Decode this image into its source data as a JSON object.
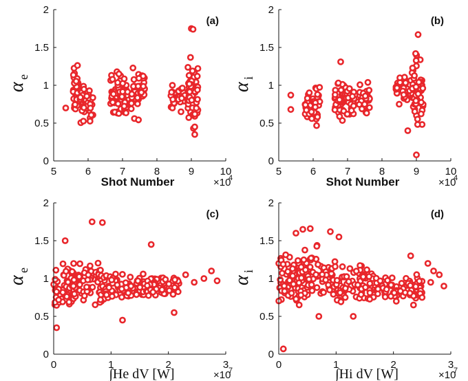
{
  "colors": {
    "marker": "#e8262b",
    "axis": "#111111"
  },
  "chart_data": [
    {
      "id": "a",
      "type": "scatter",
      "panel_label": "(a)",
      "xlabel": "Shot Number",
      "x_multiplier": "×10",
      "x_exponent": "4",
      "ylabel_symbol": "α",
      "ylabel_sub": "e",
      "xlim": [
        5,
        10
      ],
      "ylim": [
        0,
        2
      ],
      "xticks": [
        "5",
        "6",
        "7",
        "8",
        "9",
        "10"
      ],
      "yticks": [
        "0",
        "0.5",
        "1",
        "1.5",
        "2"
      ],
      "clusters": [
        {
          "x": [
            5.55,
            5.75
          ],
          "y": [
            0.45,
            1.38
          ]
        },
        {
          "x": [
            5.75,
            6.15
          ],
          "y": [
            0.42,
            1.1
          ]
        },
        {
          "x": [
            6.65,
            6.95
          ],
          "y": [
            0.5,
            1.3
          ]
        },
        {
          "x": [
            6.95,
            7.15
          ],
          "y": [
            0.5,
            1.15
          ]
        },
        {
          "x": [
            7.25,
            7.65
          ],
          "y": [
            0.47,
            1.38
          ]
        },
        {
          "x": [
            8.4,
            8.95
          ],
          "y": [
            0.65,
            1.05
          ]
        },
        {
          "x": [
            8.9,
            9.2
          ],
          "y": [
            0.35,
            1.5
          ]
        }
      ],
      "points": [
        {
          "x": 5.35,
          "y": 0.7
        },
        {
          "x": 8.45,
          "y": 1.0
        },
        {
          "x": 8.45,
          "y": 0.7
        },
        {
          "x": 8.7,
          "y": 0.65
        },
        {
          "x": 9.0,
          "y": 1.75
        },
        {
          "x": 9.05,
          "y": 1.74
        },
        {
          "x": 9.1,
          "y": 0.35
        },
        {
          "x": 9.1,
          "y": 0.45
        }
      ]
    },
    {
      "id": "b",
      "type": "scatter",
      "panel_label": "(b)",
      "xlabel": "Shot Number",
      "x_multiplier": "×10",
      "x_exponent": "4",
      "ylabel_symbol": "α",
      "ylabel_sub": "i",
      "xlim": [
        5,
        10
      ],
      "ylim": [
        0,
        2
      ],
      "xticks": [
        "5",
        "6",
        "7",
        "8",
        "9",
        "10"
      ],
      "yticks": [
        "0",
        "0.5",
        "1",
        "1.5",
        "2"
      ],
      "clusters": [
        {
          "x": [
            5.75,
            6.2
          ],
          "y": [
            0.4,
            1.1
          ]
        },
        {
          "x": [
            6.6,
            6.95
          ],
          "y": [
            0.45,
            1.15
          ]
        },
        {
          "x": [
            6.95,
            7.2
          ],
          "y": [
            0.55,
            1.05
          ]
        },
        {
          "x": [
            7.3,
            7.65
          ],
          "y": [
            0.55,
            1.1
          ]
        },
        {
          "x": [
            8.4,
            8.85
          ],
          "y": [
            0.75,
            1.15
          ]
        },
        {
          "x": [
            8.85,
            9.2
          ],
          "y": [
            0.3,
            1.6
          ]
        }
      ],
      "points": [
        {
          "x": 5.35,
          "y": 0.87
        },
        {
          "x": 5.35,
          "y": 0.68
        },
        {
          "x": 6.8,
          "y": 1.31
        },
        {
          "x": 8.5,
          "y": 0.75
        },
        {
          "x": 9.05,
          "y": 1.67
        },
        {
          "x": 9.0,
          "y": 0.08
        },
        {
          "x": 8.75,
          "y": 0.4
        }
      ]
    },
    {
      "id": "c",
      "type": "scatter",
      "panel_label": "(c)",
      "xlabel": "∫He dV [W]",
      "x_multiplier": "×10",
      "x_exponent": "7",
      "ylabel_symbol": "α",
      "ylabel_sub": "e",
      "xlim": [
        0,
        3
      ],
      "ylim": [
        0,
        2
      ],
      "xticks": [
        "0",
        "1",
        "2",
        "3"
      ],
      "yticks": [
        "0",
        "0.5",
        "1",
        "1.5",
        "2"
      ],
      "clusters": [
        {
          "x": [
            0.0,
            0.35
          ],
          "y": [
            0.45,
            1.25
          ]
        },
        {
          "x": [
            0.3,
            0.9
          ],
          "y": [
            0.5,
            1.3
          ]
        },
        {
          "x": [
            0.9,
            1.6
          ],
          "y": [
            0.6,
            1.15
          ]
        },
        {
          "x": [
            1.6,
            2.2
          ],
          "y": [
            0.7,
            1.1
          ]
        }
      ],
      "points": [
        {
          "x": 0.05,
          "y": 0.35
        },
        {
          "x": 0.2,
          "y": 1.5
        },
        {
          "x": 0.67,
          "y": 1.75
        },
        {
          "x": 0.85,
          "y": 1.74
        },
        {
          "x": 1.2,
          "y": 0.45
        },
        {
          "x": 1.7,
          "y": 1.45
        },
        {
          "x": 2.1,
          "y": 0.55
        },
        {
          "x": 2.45,
          "y": 0.95
        },
        {
          "x": 2.75,
          "y": 1.1
        },
        {
          "x": 2.85,
          "y": 0.97
        },
        {
          "x": 2.62,
          "y": 1.0
        },
        {
          "x": 2.3,
          "y": 1.05
        }
      ]
    },
    {
      "id": "d",
      "type": "scatter",
      "panel_label": "(d)",
      "xlabel": "∫Hi dV [W]",
      "x_multiplier": "×10",
      "x_exponent": "7",
      "ylabel_symbol": "α",
      "ylabel_sub": "i",
      "xlim": [
        0,
        3
      ],
      "ylim": [
        0,
        2
      ],
      "xticks": [
        "0",
        "1",
        "2",
        "3"
      ],
      "yticks": [
        "0",
        "0.5",
        "1",
        "1.5",
        "2"
      ],
      "clusters": [
        {
          "x": [
            0.0,
            0.5
          ],
          "y": [
            0.5,
            1.45
          ]
        },
        {
          "x": [
            0.3,
            1.0
          ],
          "y": [
            0.55,
            1.5
          ]
        },
        {
          "x": [
            1.0,
            1.7
          ],
          "y": [
            0.6,
            1.25
          ]
        },
        {
          "x": [
            1.7,
            2.5
          ],
          "y": [
            0.65,
            1.15
          ]
        }
      ],
      "points": [
        {
          "x": 0.08,
          "y": 0.07
        },
        {
          "x": 0.3,
          "y": 1.6
        },
        {
          "x": 0.42,
          "y": 1.65
        },
        {
          "x": 0.55,
          "y": 1.66
        },
        {
          "x": 0.9,
          "y": 1.62
        },
        {
          "x": 1.05,
          "y": 1.55
        },
        {
          "x": 0.7,
          "y": 0.5
        },
        {
          "x": 1.3,
          "y": 0.5
        },
        {
          "x": 2.3,
          "y": 1.3
        },
        {
          "x": 2.6,
          "y": 1.2
        },
        {
          "x": 2.8,
          "y": 1.05
        },
        {
          "x": 2.88,
          "y": 0.9
        },
        {
          "x": 2.65,
          "y": 0.95
        },
        {
          "x": 2.35,
          "y": 0.65
        },
        {
          "x": 2.5,
          "y": 0.75
        },
        {
          "x": 2.05,
          "y": 0.7
        },
        {
          "x": 2.7,
          "y": 1.1
        }
      ]
    }
  ]
}
